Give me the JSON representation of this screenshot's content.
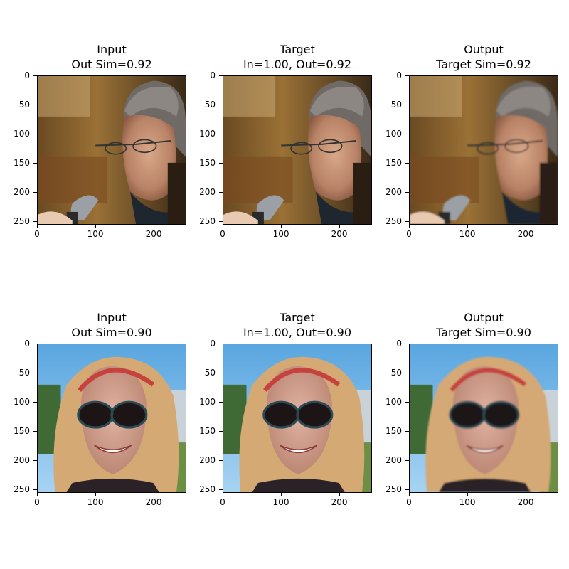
{
  "figure": {
    "rows": [
      {
        "panels": [
          {
            "line1": "Input",
            "line2": "Out Sim=0.92",
            "variant": "sharp"
          },
          {
            "line1": "Target",
            "line2": "In=1.00, Out=0.92",
            "variant": "sharp"
          },
          {
            "line1": "Output",
            "line2": "Target Sim=0.92",
            "variant": "smooth"
          }
        ],
        "subject": "man-with-glasses-and-microphone"
      },
      {
        "panels": [
          {
            "line1": "Input",
            "line2": "Out Sim=0.90",
            "variant": "sharp"
          },
          {
            "line1": "Target",
            "line2": "In=1.00, Out=0.90",
            "variant": "sharp"
          },
          {
            "line1": "Output",
            "line2": "Target Sim=0.90",
            "variant": "smooth"
          }
        ],
        "subject": "woman-with-sunglasses-and-headband"
      }
    ],
    "y_ticks": [
      "0",
      "50",
      "100",
      "150",
      "200",
      "250"
    ],
    "x_ticks": [
      "0",
      "100",
      "200"
    ],
    "axis_range": [
      0,
      256
    ]
  }
}
